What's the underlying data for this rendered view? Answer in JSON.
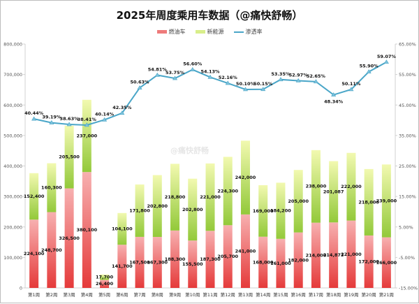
{
  "title": "2025年周度乘用车数据（@痛快舒畅）",
  "watermark": "@痛快舒畅",
  "legend": [
    {
      "label": "燃油车",
      "color": "#ee7b7b",
      "kind": "bar"
    },
    {
      "label": "新能源",
      "color": "#d8ee8a",
      "kind": "bar"
    },
    {
      "label": "渗透率",
      "color": "#4aa6c8",
      "kind": "line"
    }
  ],
  "colors": {
    "fuel_top": "#f7b0b0",
    "fuel_bottom": "#e53a3a",
    "nev_top": "#f2f9b0",
    "nev_bottom": "#93c93a",
    "line": "#4aa6c8",
    "axis": "#d0d0d0",
    "tick_text": "#555555"
  },
  "chart_data": {
    "type": "bar",
    "stacked": true,
    "title": "2025年周度乘用车数据（@痛快舒畅）",
    "xlabel": "",
    "ylabel": "",
    "categories": [
      "第1周",
      "第2周",
      "第3周",
      "第4周",
      "第5周",
      "第6周",
      "第7周",
      "第8周",
      "第9周",
      "第10周",
      "第11周",
      "第12周",
      "第13周",
      "第14周",
      "第15周",
      "第16周",
      "第17周",
      "第18周",
      "第19周",
      "第20周",
      "第21周"
    ],
    "series": [
      {
        "name": "燃油车",
        "type": "bar",
        "axis": "left",
        "values": [
          224100,
          248700,
          326500,
          380100,
          26400,
          141700,
          167500,
          167300,
          188300,
          155500,
          187300,
          205700,
          241000,
          168000,
          161000,
          182000,
          214000,
          214873,
          221000,
          172000,
          166000
        ],
        "labels": [
          "224,100",
          "248,700",
          "326,500",
          "380,100",
          "26,400",
          "141,700",
          "167,500",
          "167,300",
          "188,300",
          "155,500",
          "187,300",
          "205,700",
          "241,000",
          "168,000",
          "161,000",
          "182,000",
          "214,000",
          "214,873",
          "221,000",
          "172,000",
          "166,000"
        ]
      },
      {
        "name": "新能源",
        "type": "bar",
        "axis": "left",
        "values": [
          152400,
          160300,
          205500,
          237000,
          17700,
          104100,
          171800,
          202800,
          218800,
          202800,
          221000,
          224300,
          242000,
          169000,
          184200,
          205000,
          238000,
          201087,
          222000,
          218000,
          239000
        ],
        "labels": [
          "152,400",
          "160,300",
          "205,500",
          "237,000",
          "17,700",
          "104,100",
          "171,800",
          "202,800",
          "218,800",
          "202,800",
          "221,000",
          "224,300",
          "242,000",
          "169,000",
          "184,200",
          "205,000",
          "238,000",
          "201,087",
          "222,000",
          "218,000",
          "239,000"
        ]
      },
      {
        "name": "渗透率",
        "type": "line",
        "axis": "right",
        "values": [
          40.44,
          39.19,
          38.63,
          38.41,
          40.14,
          42.35,
          50.63,
          54.81,
          53.75,
          56.6,
          54.13,
          52.16,
          50.1,
          50.15,
          53.35,
          52.97,
          52.65,
          48.34,
          50.11,
          55.9,
          59.07
        ],
        "labels": [
          "40.44%",
          "39.19%",
          "38.63%",
          "38.41%",
          "40.14%",
          "42.35%",
          "50.63%",
          "54.81%",
          "53.75%",
          "56.60%",
          "54.13%",
          "52.16%",
          "50.10%",
          "50.15%",
          "53.35%",
          "52.97%",
          "52.65%",
          "48.34%",
          "50.11%",
          "55.90%",
          "59.07%"
        ]
      }
    ],
    "y_left": {
      "min": 0,
      "max": 800000,
      "step": 100000,
      "ticks": [
        "0",
        "100,000",
        "200,000",
        "300,000",
        "400,000",
        "500,000",
        "600,000",
        "700,000",
        "800,000"
      ]
    },
    "y_right": {
      "min": -15,
      "max": 65,
      "step": 10,
      "ticks": [
        "-15.00%",
        "-5.00%",
        "5.00%",
        "15.00%",
        "25.00%",
        "35.00%",
        "45.00%",
        "55.00%",
        "65.00%"
      ]
    },
    "grid": false,
    "legend_position": "top"
  }
}
